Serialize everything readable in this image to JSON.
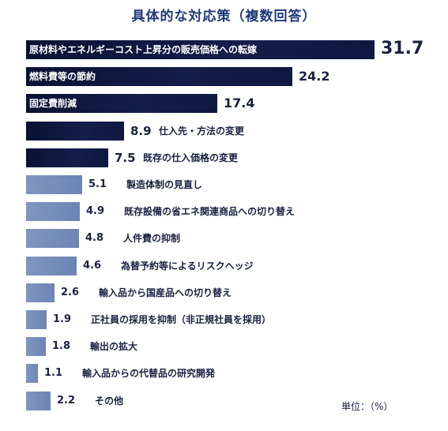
{
  "chart_data": {
    "type": "bar",
    "orientation": "horizontal",
    "title": "具体的な対応策（複数回答）",
    "unit_label": "単位：（%）",
    "categories": [
      "原材料やエネルギーコスト上昇分の販売価格への転嫁",
      "燃料費等の節約",
      "固定費削減",
      "仕入先・方法の変更",
      "既存の仕入価格の変更",
      "製造体制の見直し",
      "既存設備の省エネ関連商品への切り替え",
      "人件費の抑制",
      "為替予約等によるリスクヘッジ",
      "輸入品から国産品への切り替え",
      "正社員の採用を抑制（非正規社員を採用）",
      "輸出の拡大",
      "輸入品からの代替品の研究開発",
      "その他"
    ],
    "values": [
      31.7,
      24.2,
      17.4,
      8.9,
      7.5,
      5.1,
      4.9,
      4.8,
      4.6,
      2.6,
      1.9,
      1.8,
      1.1,
      2.2
    ],
    "value_labels": [
      "31.7",
      "24.2",
      "17.4",
      "8.9",
      "7.5",
      "5.1",
      "4.9",
      "4.8",
      "4.6",
      "2.6",
      "1.9",
      "1.8",
      "1.1",
      "2.2"
    ],
    "colors": {
      "top": "#0f1840",
      "rest": "#7189b8",
      "text": "#1a2140",
      "title": "#1f3a7a"
    }
  }
}
